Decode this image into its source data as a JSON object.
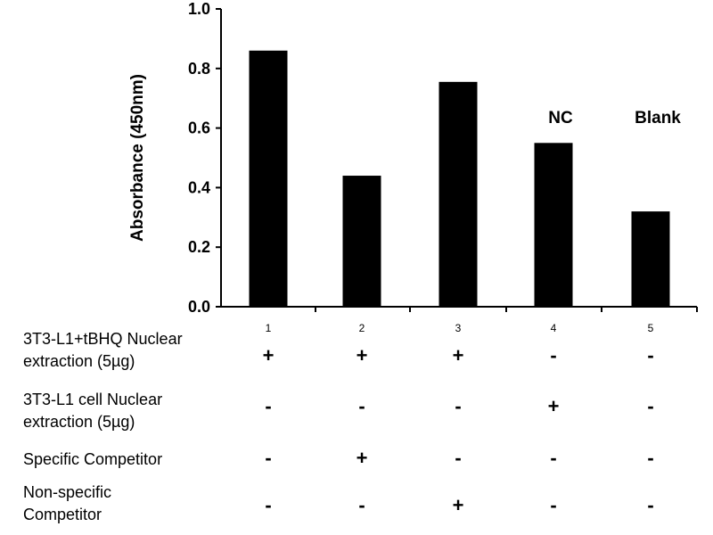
{
  "chart_data": {
    "type": "bar",
    "categories": [
      "1",
      "2",
      "3",
      "4",
      "5"
    ],
    "values": [
      0.86,
      0.44,
      0.755,
      0.55,
      0.32
    ],
    "ylim": [
      0,
      1.0
    ],
    "yticks": [
      "0.0",
      "0.2",
      "0.4",
      "0.6",
      "0.8",
      "1.0"
    ],
    "ytick_values": [
      0,
      0.2,
      0.4,
      0.6,
      0.8,
      1.0
    ],
    "ylabel": "Absorbance (450nm)",
    "xlabel": "",
    "title": "",
    "bar_color": "#000000",
    "annotations": [
      {
        "category": "4",
        "text": "NC"
      },
      {
        "category": "5",
        "text": "Blank"
      }
    ]
  },
  "conditions": [
    {
      "label": "3T3-L1+tBHQ Nuclear\nextraction (5µg)",
      "signs": [
        "+",
        "+",
        "+",
        "-",
        "-"
      ]
    },
    {
      "label": "3T3-L1 cell Nuclear\nextraction (5µg)",
      "signs": [
        "-",
        "-",
        "-",
        "+",
        "-"
      ]
    },
    {
      "label": "Specific Competitor",
      "signs": [
        "-",
        "+",
        "-",
        "-",
        "-"
      ]
    },
    {
      "label": "Non-specific\nCompetitor",
      "signs": [
        "-",
        "-",
        "+",
        "-",
        "-"
      ]
    }
  ]
}
